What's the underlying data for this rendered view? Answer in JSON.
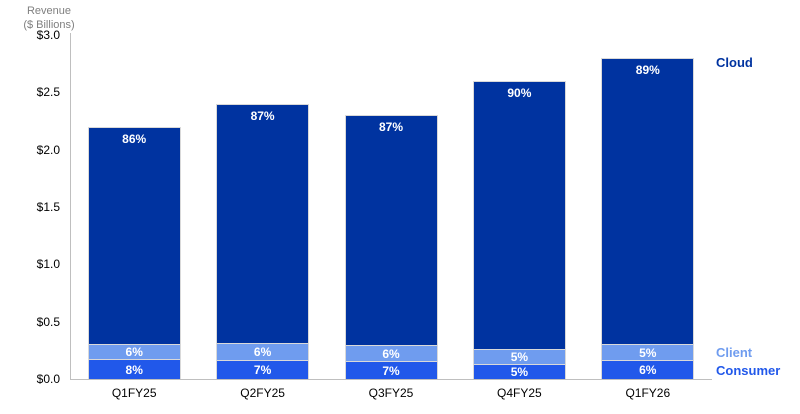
{
  "axis_title": {
    "line1": "Revenue",
    "line2": "($ Billions)"
  },
  "colors": {
    "cloud": "#0033A0",
    "client": "#6F9CEF",
    "consumer": "#2158EA",
    "axis_line": "#BFBFBF",
    "segment_border": "#D9D9D9",
    "axis_title_text": "#7F7F7F",
    "tick_text": "#000000"
  },
  "chart_data": {
    "type": "bar",
    "subtype": "stacked-percent-labels",
    "title": "Revenue ($ Billions)",
    "categories": [
      "Q1FY25",
      "Q2FY25",
      "Q3FY25",
      "Q4FY25",
      "Q1FY26"
    ],
    "totals_billions": [
      2.2,
      2.4,
      2.3,
      2.6,
      2.8
    ],
    "series": [
      {
        "name": "Cloud",
        "color": "#0033A0",
        "pct": [
          86,
          87,
          87,
          90,
          89
        ]
      },
      {
        "name": "Client",
        "color": "#6F9CEF",
        "pct": [
          6,
          6,
          6,
          5,
          5
        ]
      },
      {
        "name": "Consumer",
        "color": "#2158EA",
        "pct": [
          8,
          7,
          7,
          5,
          6
        ]
      }
    ],
    "ylabel": "Revenue ($ Billions)",
    "ylim": [
      0,
      3.0
    ],
    "yticks": [
      "$3.0",
      "$2.5",
      "$2.0",
      "$1.5",
      "$1.0",
      "$0.5",
      "$0.0"
    ],
    "ytick_values": [
      3.0,
      2.5,
      2.0,
      1.5,
      1.0,
      0.5,
      0.0
    ],
    "grid": "off",
    "legend_position": "right-of-bars, series labels colored like segments"
  }
}
